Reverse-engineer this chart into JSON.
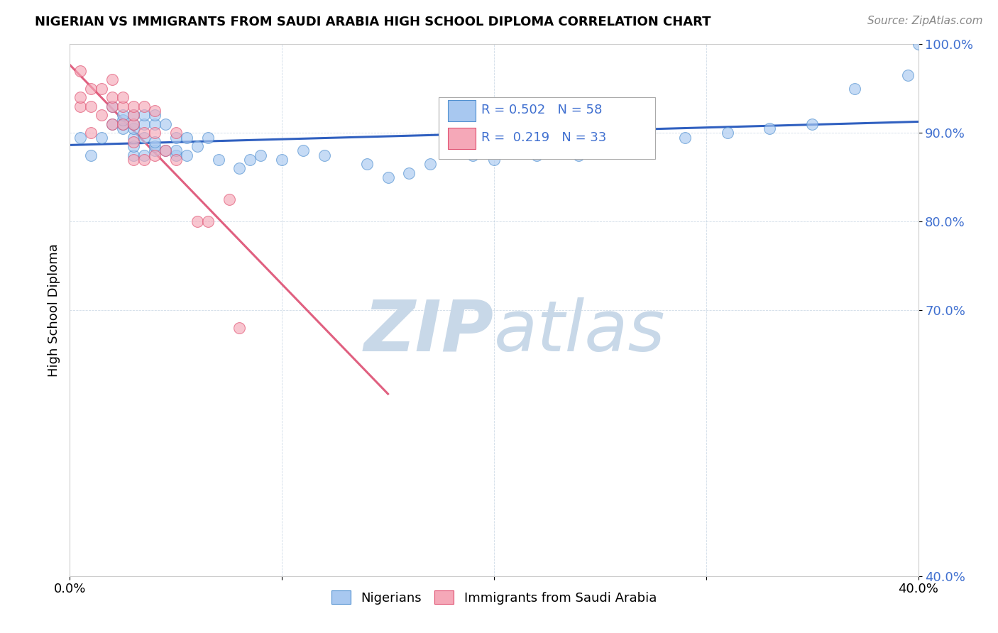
{
  "title": "NIGERIAN VS IMMIGRANTS FROM SAUDI ARABIA HIGH SCHOOL DIPLOMA CORRELATION CHART",
  "source": "Source: ZipAtlas.com",
  "ylabel": "High School Diploma",
  "xlim": [
    0.0,
    0.4
  ],
  "ylim": [
    0.4,
    1.0
  ],
  "xtick_positions": [
    0.0,
    0.1,
    0.2,
    0.3,
    0.4
  ],
  "xtick_labels": [
    "0.0%",
    "",
    "",
    "",
    "40.0%"
  ],
  "ytick_positions": [
    0.4,
    0.7,
    0.8,
    0.9,
    1.0
  ],
  "ytick_labels": [
    "40.0%",
    "70.0%",
    "80.0%",
    "90.0%",
    "100.0%"
  ],
  "blue_r": 0.502,
  "blue_n": 58,
  "pink_r": 0.219,
  "pink_n": 33,
  "blue_color": "#A8C8F0",
  "pink_color": "#F5A8B8",
  "blue_edge_color": "#5090D0",
  "pink_edge_color": "#E05070",
  "blue_line_color": "#3060C0",
  "pink_line_color": "#E06080",
  "tick_color": "#4070D0",
  "watermark_color": "#C8D8E8",
  "blue_x": [
    0.005,
    0.01,
    0.015,
    0.02,
    0.02,
    0.025,
    0.025,
    0.025,
    0.025,
    0.03,
    0.03,
    0.03,
    0.03,
    0.03,
    0.03,
    0.035,
    0.035,
    0.035,
    0.035,
    0.04,
    0.04,
    0.04,
    0.04,
    0.04,
    0.045,
    0.045,
    0.05,
    0.05,
    0.05,
    0.055,
    0.055,
    0.06,
    0.065,
    0.07,
    0.08,
    0.085,
    0.09,
    0.1,
    0.11,
    0.12,
    0.14,
    0.15,
    0.16,
    0.17,
    0.19,
    0.2,
    0.22,
    0.23,
    0.24,
    0.26,
    0.27,
    0.29,
    0.31,
    0.33,
    0.35,
    0.37,
    0.395,
    0.4
  ],
  "blue_y": [
    0.895,
    0.875,
    0.895,
    0.91,
    0.93,
    0.905,
    0.91,
    0.915,
    0.92,
    0.875,
    0.885,
    0.895,
    0.905,
    0.91,
    0.92,
    0.875,
    0.895,
    0.91,
    0.92,
    0.88,
    0.885,
    0.89,
    0.91,
    0.92,
    0.88,
    0.91,
    0.875,
    0.88,
    0.895,
    0.875,
    0.895,
    0.885,
    0.895,
    0.87,
    0.86,
    0.87,
    0.875,
    0.87,
    0.88,
    0.875,
    0.865,
    0.85,
    0.855,
    0.865,
    0.875,
    0.87,
    0.875,
    0.89,
    0.875,
    0.88,
    0.89,
    0.895,
    0.9,
    0.905,
    0.91,
    0.95,
    0.965,
    1.0
  ],
  "pink_x": [
    0.005,
    0.005,
    0.005,
    0.01,
    0.01,
    0.01,
    0.015,
    0.015,
    0.02,
    0.02,
    0.02,
    0.02,
    0.025,
    0.025,
    0.025,
    0.03,
    0.03,
    0.03,
    0.03,
    0.03,
    0.035,
    0.035,
    0.035,
    0.04,
    0.04,
    0.04,
    0.045,
    0.05,
    0.05,
    0.06,
    0.065,
    0.075,
    0.08
  ],
  "pink_y": [
    0.93,
    0.94,
    0.97,
    0.9,
    0.93,
    0.95,
    0.92,
    0.95,
    0.91,
    0.93,
    0.94,
    0.96,
    0.91,
    0.93,
    0.94,
    0.87,
    0.89,
    0.91,
    0.92,
    0.93,
    0.87,
    0.9,
    0.93,
    0.875,
    0.9,
    0.925,
    0.88,
    0.87,
    0.9,
    0.8,
    0.8,
    0.825,
    0.68
  ]
}
